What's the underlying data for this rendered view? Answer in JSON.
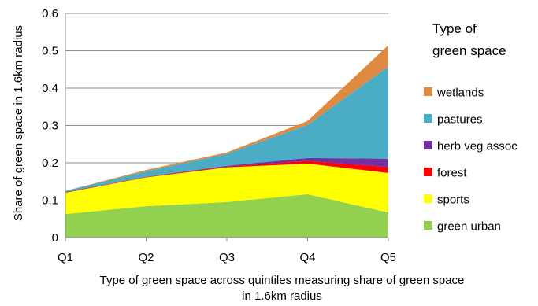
{
  "chart_data": {
    "type": "area",
    "stacked": true,
    "categories": [
      "Q1",
      "Q2",
      "Q3",
      "Q4",
      "Q5"
    ],
    "series": [
      {
        "name": "green urban",
        "color": "#92d050",
        "values": [
          0.063,
          0.084,
          0.095,
          0.116,
          0.067
        ]
      },
      {
        "name": "sports",
        "color": "#ffff00",
        "values": [
          0.057,
          0.077,
          0.093,
          0.082,
          0.106
        ]
      },
      {
        "name": "forest",
        "color": "#ff0000",
        "values": [
          0.001,
          0.001,
          0.002,
          0.007,
          0.016
        ]
      },
      {
        "name": "herb veg assoc",
        "color": "#7030a0",
        "values": [
          0.001,
          0.001,
          0.002,
          0.008,
          0.022
        ]
      },
      {
        "name": "pastures",
        "color": "#4bacc6",
        "values": [
          0.003,
          0.014,
          0.032,
          0.088,
          0.246
        ]
      },
      {
        "name": "wetlands",
        "color": "#dd8a42",
        "values": [
          0.0,
          0.004,
          0.004,
          0.011,
          0.058
        ]
      }
    ],
    "xlabel": "Type of green space across quintiles measuring share of green space in 1.6km radius",
    "xlabel_lines": [
      "Type of green space across quintiles measuring share of green space",
      "in 1.6km radius"
    ],
    "ylabel": "Share of green space in 1.6km radius",
    "ylim": [
      0,
      0.6
    ],
    "yticks": [
      0,
      0.1,
      0.2,
      0.3,
      0.4,
      0.5,
      0.6
    ],
    "ytick_labels": [
      "0",
      "0.1",
      "0.2",
      "0.3",
      "0.4",
      "0.5",
      "0.6"
    ],
    "grid": true,
    "legend": {
      "title": "Type of green space",
      "title_lines": [
        "Type of",
        "green space"
      ],
      "placement": "right",
      "order": [
        "wetlands",
        "pastures",
        "herb veg assoc",
        "forest",
        "sports",
        "green urban"
      ]
    }
  }
}
